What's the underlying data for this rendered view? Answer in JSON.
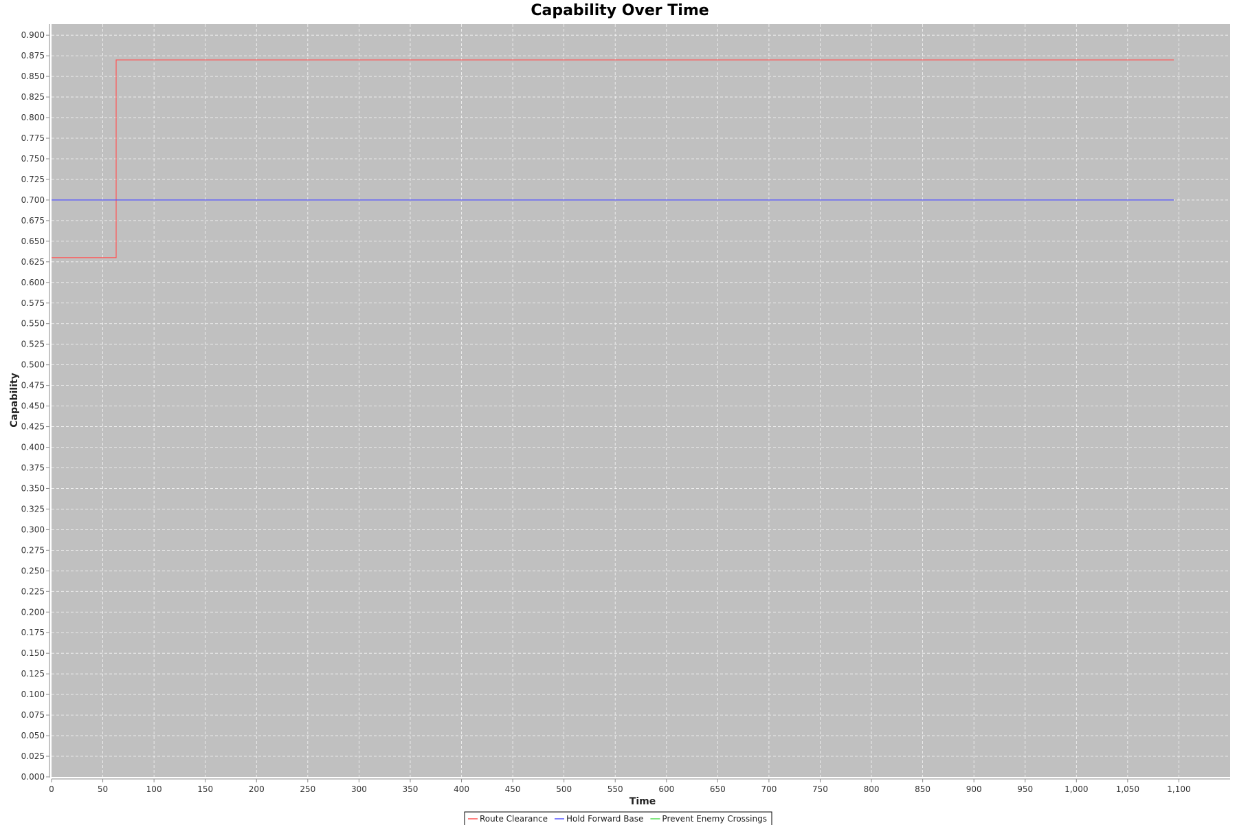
{
  "chart_data": {
    "type": "line",
    "title": "Capability Over Time",
    "xlabel": "Time",
    "ylabel": "Capability",
    "xlim": [
      0,
      1150
    ],
    "ylim": [
      0,
      0.9135
    ],
    "x_ticks": [
      0,
      50,
      100,
      150,
      200,
      250,
      300,
      350,
      400,
      450,
      500,
      550,
      600,
      650,
      700,
      750,
      800,
      850,
      900,
      950,
      1000,
      1050,
      1100
    ],
    "x_tick_labels": [
      "0",
      "50",
      "100",
      "150",
      "200",
      "250",
      "300",
      "350",
      "400",
      "450",
      "500",
      "550",
      "600",
      "650",
      "700",
      "750",
      "800",
      "850",
      "900",
      "950",
      "1,000",
      "1,050",
      "1,100"
    ],
    "y_ticks": [
      0,
      0.025,
      0.05,
      0.075,
      0.1,
      0.125,
      0.15,
      0.175,
      0.2,
      0.225,
      0.25,
      0.275,
      0.3,
      0.325,
      0.35,
      0.375,
      0.4,
      0.425,
      0.45,
      0.475,
      0.5,
      0.525,
      0.55,
      0.575,
      0.6,
      0.625,
      0.65,
      0.675,
      0.7,
      0.725,
      0.75,
      0.775,
      0.8,
      0.825,
      0.85,
      0.875,
      0.9
    ],
    "y_tick_labels": [
      "0.000",
      "0.025",
      "0.050",
      "0.075",
      "0.100",
      "0.125",
      "0.150",
      "0.175",
      "0.200",
      "0.225",
      "0.250",
      "0.275",
      "0.300",
      "0.325",
      "0.350",
      "0.375",
      "0.400",
      "0.425",
      "0.450",
      "0.475",
      "0.500",
      "0.525",
      "0.550",
      "0.575",
      "0.600",
      "0.625",
      "0.650",
      "0.675",
      "0.700",
      "0.725",
      "0.750",
      "0.775",
      "0.800",
      "0.825",
      "0.850",
      "0.875",
      "0.900"
    ],
    "grid": true,
    "step": true,
    "background_color": "#c0c0c0",
    "grid_color": "#ffffff",
    "legend_position": "bottom-center",
    "series": [
      {
        "name": "Route Clearance",
        "color": "#ff5555",
        "x": [
          0,
          63,
          1095
        ],
        "y": [
          0.63,
          0.87,
          0.87
        ]
      },
      {
        "name": "Hold Forward Base",
        "color": "#5555ff",
        "x": [
          0,
          1095
        ],
        "y": [
          0.7,
          0.7
        ]
      },
      {
        "name": "Prevent Enemy Crossings",
        "color": "#55dd55",
        "x": [],
        "y": []
      }
    ]
  }
}
